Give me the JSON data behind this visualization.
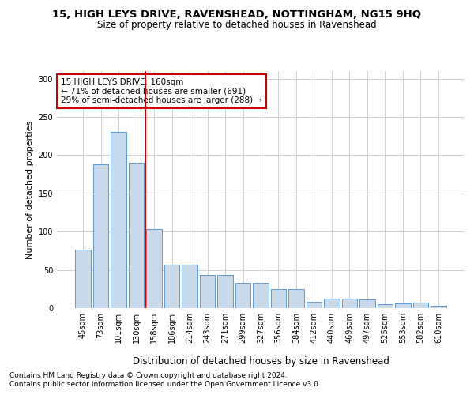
{
  "title1": "15, HIGH LEYS DRIVE, RAVENSHEAD, NOTTINGHAM, NG15 9HQ",
  "title2": "Size of property relative to detached houses in Ravenshead",
  "xlabel": "Distribution of detached houses by size in Ravenshead",
  "ylabel": "Number of detached properties",
  "footnote1": "Contains HM Land Registry data © Crown copyright and database right 2024.",
  "footnote2": "Contains public sector information licensed under the Open Government Licence v3.0.",
  "annotation_title": "15 HIGH LEYS DRIVE: 160sqm",
  "annotation_line1": "← 71% of detached houses are smaller (691)",
  "annotation_line2": "29% of semi-detached houses are larger (288) →",
  "categories": [
    "45sqm",
    "73sqm",
    "101sqm",
    "130sqm",
    "158sqm",
    "186sqm",
    "214sqm",
    "243sqm",
    "271sqm",
    "299sqm",
    "327sqm",
    "356sqm",
    "384sqm",
    "412sqm",
    "440sqm",
    "469sqm",
    "497sqm",
    "525sqm",
    "553sqm",
    "582sqm",
    "610sqm"
  ],
  "values": [
    76,
    188,
    230,
    190,
    103,
    57,
    57,
    43,
    43,
    33,
    33,
    25,
    25,
    8,
    12,
    12,
    11,
    5,
    6,
    7,
    3
  ],
  "bar_color": "#c8d9ec",
  "bar_edge_color": "#5b9bd5",
  "vline_color": "#cc0000",
  "annotation_box_edge": "#cc0000",
  "grid_color": "#d0d0d0",
  "ylim": [
    0,
    310
  ],
  "yticks": [
    0,
    50,
    100,
    150,
    200,
    250,
    300
  ],
  "background_color": "#ffffff",
  "title1_fontsize": 9.5,
  "title2_fontsize": 8.5,
  "xlabel_fontsize": 8.5,
  "ylabel_fontsize": 8,
  "tick_fontsize": 7,
  "annotation_fontsize": 7.5,
  "footnote_fontsize": 6.5,
  "vline_x": 3.5
}
